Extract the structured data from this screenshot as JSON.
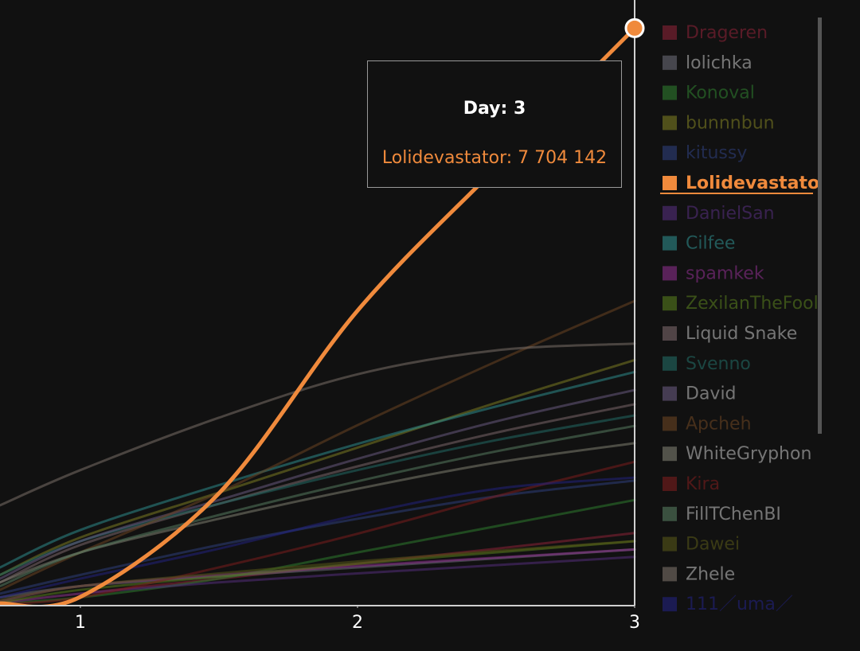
{
  "chart_data": {
    "type": "line",
    "x": [
      0.71,
      1,
      1.5,
      2,
      2.5,
      3
    ],
    "xlim": [
      0.71,
      3
    ],
    "xticks": [
      1,
      2,
      3
    ],
    "ylim": [
      0,
      8080000
    ],
    "highlight_index": 5,
    "tooltip": {
      "title": "Day: 3",
      "label": "Lolidevastator: 7 704 142"
    },
    "series": [
      {
        "name": "Drageren",
        "color": "#8a2236",
        "values": [
          30000,
          150000,
          350000,
          550000,
          750000,
          960000
        ]
      },
      {
        "name": "lolichka",
        "color": "#6a6a76",
        "values": [
          100000,
          250000,
          380000,
          500000,
          620000,
          740000
        ]
      },
      {
        "name": "Konoval",
        "color": "#2e7a2e",
        "values": [
          20000,
          100000,
          350000,
          700000,
          1050000,
          1400000
        ]
      },
      {
        "name": "bunnnbun",
        "color": "#7a7a22",
        "values": [
          400000,
          900000,
          1500000,
          2100000,
          2700000,
          3270000
        ]
      },
      {
        "name": "kitussy",
        "color": "#2e3e7a",
        "values": [
          150000,
          400000,
          800000,
          1150000,
          1450000,
          1660000
        ]
      },
      {
        "name": "Lolidevastator",
        "color": "#f08a3c",
        "values": [
          20000,
          106000,
          1490000,
          3930000,
          5840000,
          7704142
        ]
      },
      {
        "name": "DanielSan",
        "color": "#542e7a",
        "values": [
          20000,
          150000,
          300000,
          420000,
          530000,
          640000
        ]
      },
      {
        "name": "Cilfee",
        "color": "#2e8a8a",
        "values": [
          500000,
          1000000,
          1600000,
          2150000,
          2650000,
          3110000
        ]
      },
      {
        "name": "spamkek",
        "color": "#8a2e8a",
        "values": [
          50000,
          250000,
          400000,
          520000,
          630000,
          740000
        ]
      },
      {
        "name": "ZexilanTheFool",
        "color": "#567a1e",
        "values": [
          30000,
          200000,
          380000,
          550000,
          700000,
          850000
        ]
      },
      {
        "name": "Liquid Snake",
        "color": "#7a666a",
        "values": [
          300000,
          800000,
          1350000,
          1850000,
          2300000,
          2680000
        ]
      },
      {
        "name": "Svenno",
        "color": "#226a64",
        "values": [
          400000,
          850000,
          1350000,
          1800000,
          2200000,
          2530000
        ]
      },
      {
        "name": "David",
        "color": "#685a7e",
        "values": [
          350000,
          850000,
          1400000,
          1950000,
          2450000,
          2870000
        ]
      },
      {
        "name": "Apcheh",
        "color": "#6a4422",
        "values": [
          200000,
          700000,
          1500000,
          2400000,
          3250000,
          4060000
        ]
      },
      {
        "name": "WhiteGryphon",
        "color": "#7e7e70",
        "values": [
          300000,
          700000,
          1150000,
          1550000,
          1900000,
          2160000
        ]
      },
      {
        "name": "Kira",
        "color": "#7a1e1e",
        "values": [
          10000,
          100000,
          500000,
          950000,
          1450000,
          1910000
        ]
      },
      {
        "name": "FillTChenBI",
        "color": "#567a5e",
        "values": [
          250000,
          700000,
          1200000,
          1650000,
          2050000,
          2390000
        ]
      },
      {
        "name": "Dawei",
        "color": "#565618",
        "values": [
          60000,
          250000,
          420000,
          580000,
          720000,
          850000
        ]
      },
      {
        "name": "Zhele",
        "color": "#7a7068",
        "values": [
          1330000,
          1800000,
          2500000,
          3080000,
          3400000,
          3490000
        ]
      },
      {
        "name": "111／uma／",
        "color": "#22227e",
        "values": [
          100000,
          350000,
          750000,
          1200000,
          1550000,
          1700000
        ]
      }
    ]
  }
}
